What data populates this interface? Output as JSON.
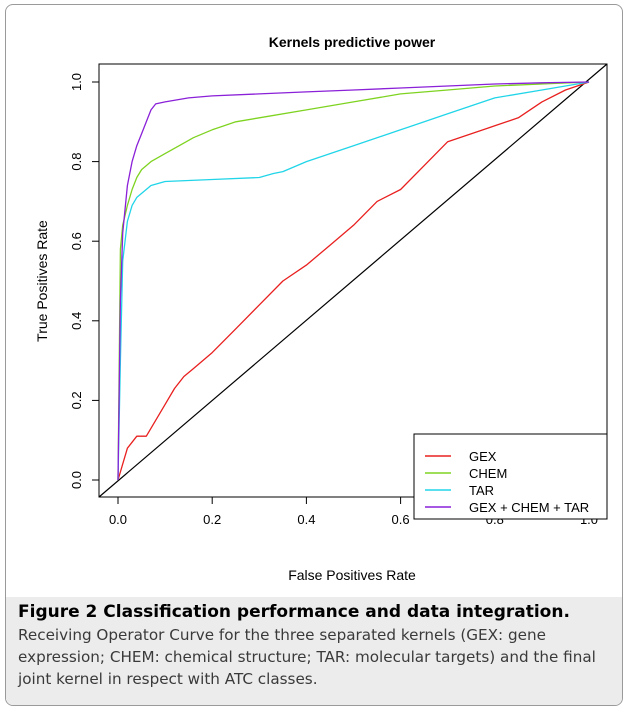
{
  "figure": {
    "caption_title": "Figure 2 Classification performance and data integration.",
    "caption_text": "Receiving Operator Curve for the three separated kernels (GEX: gene expression; CHEM: chemical structure; TAR: molecular targets) and the final joint kernel in respect with ATC classes."
  },
  "chart_data": {
    "type": "line",
    "title": "Kernels predictive power",
    "xlabel": "False Positives Rate",
    "ylabel": "True Positives Rate",
    "xlim": [
      0,
      1
    ],
    "ylim": [
      0,
      1
    ],
    "x_ticks": [
      "0.0",
      "0.2",
      "0.4",
      "0.6",
      "0.8",
      "1.0"
    ],
    "y_ticks": [
      "0.0",
      "0.2",
      "0.4",
      "0.6",
      "0.8",
      "1.0"
    ],
    "grid": false,
    "legend_position": "bottom-right",
    "reference_line": {
      "x": [
        0,
        1
      ],
      "y": [
        0,
        1
      ],
      "color": "#000000"
    },
    "series": [
      {
        "name": "GEX",
        "color": "#e8201f",
        "x": [
          0,
          0.01,
          0.02,
          0.04,
          0.06,
          0.08,
          0.1,
          0.12,
          0.14,
          0.16,
          0.18,
          0.2,
          0.25,
          0.3,
          0.35,
          0.4,
          0.45,
          0.5,
          0.55,
          0.6,
          0.65,
          0.7,
          0.75,
          0.8,
          0.85,
          0.9,
          0.95,
          1.0
        ],
        "y": [
          0,
          0.04,
          0.08,
          0.11,
          0.11,
          0.15,
          0.19,
          0.23,
          0.26,
          0.28,
          0.3,
          0.32,
          0.38,
          0.44,
          0.5,
          0.54,
          0.59,
          0.64,
          0.7,
          0.73,
          0.79,
          0.85,
          0.87,
          0.89,
          0.91,
          0.95,
          0.98,
          1.0
        ]
      },
      {
        "name": "CHEM",
        "color": "#7ed321",
        "x": [
          0,
          0.005,
          0.01,
          0.02,
          0.03,
          0.04,
          0.05,
          0.07,
          0.1,
          0.13,
          0.16,
          0.2,
          0.25,
          0.3,
          0.4,
          0.5,
          0.6,
          0.7,
          0.8,
          0.9,
          1.0
        ],
        "y": [
          0,
          0.58,
          0.64,
          0.69,
          0.73,
          0.76,
          0.78,
          0.8,
          0.82,
          0.84,
          0.86,
          0.88,
          0.9,
          0.91,
          0.93,
          0.95,
          0.97,
          0.98,
          0.99,
          0.995,
          1.0
        ]
      },
      {
        "name": "TAR",
        "color": "#21d5e8",
        "x": [
          0,
          0.005,
          0.01,
          0.02,
          0.03,
          0.04,
          0.05,
          0.07,
          0.1,
          0.2,
          0.3,
          0.33,
          0.35,
          0.4,
          0.5,
          0.6,
          0.7,
          0.8,
          0.9,
          1.0
        ],
        "y": [
          0,
          0.3,
          0.55,
          0.65,
          0.69,
          0.71,
          0.72,
          0.74,
          0.75,
          0.755,
          0.76,
          0.77,
          0.775,
          0.8,
          0.84,
          0.88,
          0.92,
          0.96,
          0.98,
          1.0
        ]
      },
      {
        "name": "GEX + CHEM + TAR",
        "color": "#8a20d8",
        "x": [
          0,
          0.005,
          0.01,
          0.02,
          0.03,
          0.04,
          0.05,
          0.06,
          0.07,
          0.08,
          0.1,
          0.15,
          0.2,
          0.3,
          0.4,
          0.5,
          0.6,
          0.7,
          0.8,
          0.9,
          1.0
        ],
        "y": [
          0,
          0.45,
          0.62,
          0.74,
          0.8,
          0.84,
          0.87,
          0.9,
          0.93,
          0.945,
          0.95,
          0.96,
          0.965,
          0.97,
          0.975,
          0.98,
          0.985,
          0.99,
          0.995,
          0.998,
          1.0
        ]
      }
    ]
  }
}
